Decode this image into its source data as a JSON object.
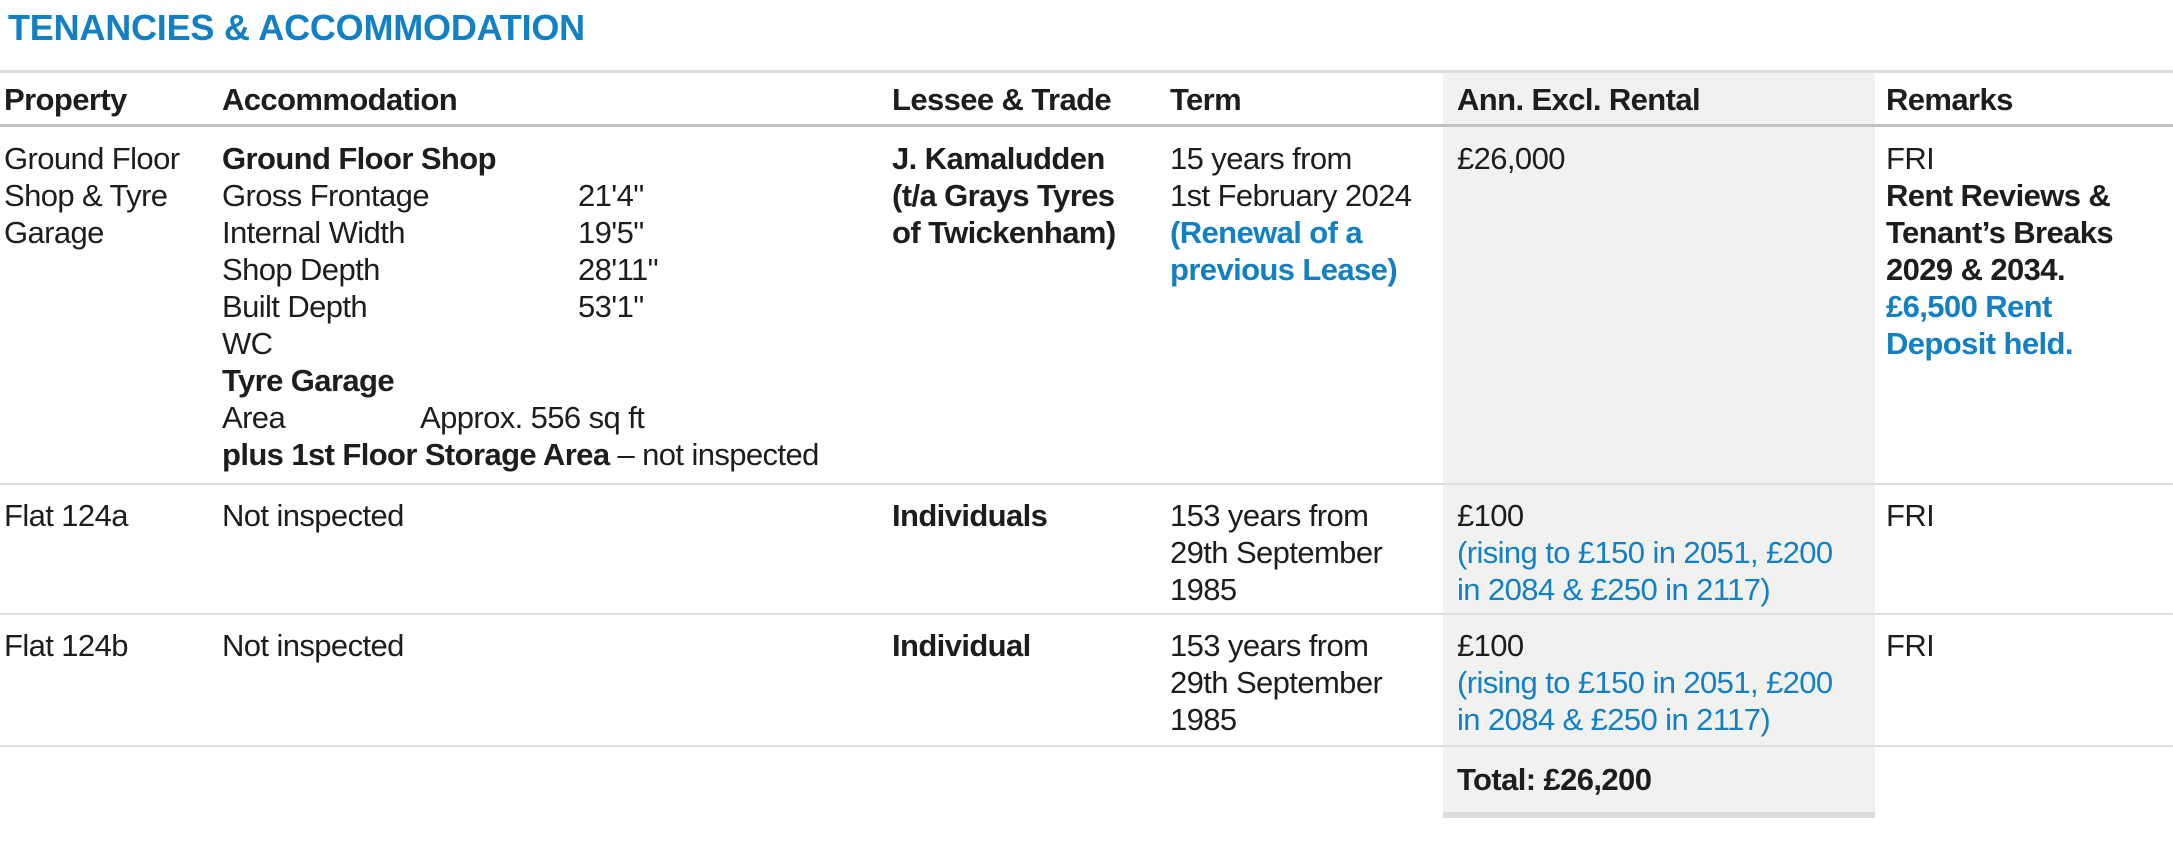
{
  "title": "TENANCIES & ACCOMMODATION",
  "colors": {
    "accent_blue": "#1280c2",
    "rental_column_bg": "#f1f1ef",
    "text": "#1d1d1b"
  },
  "table": {
    "headers": {
      "property": "Property",
      "accommodation": "Accommodation",
      "lessee": "Lessee & Trade",
      "term": "Term",
      "rental": "Ann. Excl. Rental",
      "remarks": "Remarks"
    },
    "rows": [
      {
        "property": "Ground Floor\nShop & Tyre\nGarage",
        "accommodation": {
          "section1_title": "Ground Floor Shop",
          "dims": [
            {
              "label": "Gross Frontage",
              "value": "21'4\""
            },
            {
              "label": "Internal Width",
              "value": "19'5\""
            },
            {
              "label": "Shop Depth",
              "value": "28'11\""
            },
            {
              "label": "Built Depth",
              "value": "53'1\""
            }
          ],
          "wc": "WC",
          "section2_title": "Tyre Garage",
          "area_label": "Area",
          "area_value": "Approx. 556 sq ft",
          "storage_bold": "plus 1st Floor Storage Area",
          "storage_note": " – not inspected"
        },
        "lessee": "J. Kamaludden\n(t/a Grays Tyres\nof Twickenham)",
        "term": "15 years from\n1st February 2024",
        "term_note": "(Renewal of a\nprevious Lease)",
        "rental": "£26,000",
        "remarks": "FRI",
        "remarks_bold": "Rent Reviews &\nTenant’s Breaks\n2029 & 2034.",
        "remarks_blue": "£6,500 Rent\nDeposit held."
      },
      {
        "property": "Flat 124a",
        "accommodation": "Not inspected",
        "lessee": "Individuals",
        "term": "153 years from\n29th September\n1985",
        "rental": "£100",
        "rental_note": "(rising to £150 in 2051, £200\nin 2084 & £250 in 2117)",
        "remarks": "FRI"
      },
      {
        "property": "Flat 124b",
        "accommodation": "Not inspected",
        "lessee": "Individual",
        "term": "153 years from\n29th September\n1985",
        "rental": "£100",
        "rental_note": "(rising to £150 in 2051, £200\nin 2084 & £250 in 2117)",
        "remarks": "FRI"
      }
    ],
    "total": "Total: £26,200"
  }
}
